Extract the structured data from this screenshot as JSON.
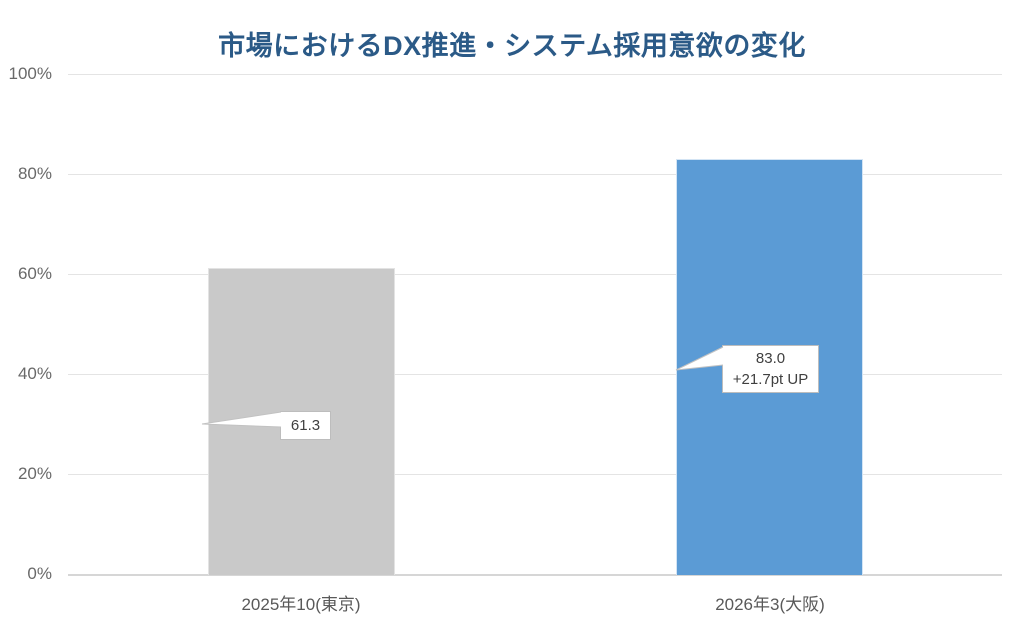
{
  "chart_data": {
    "type": "bar",
    "title": "市場におけるDX推進・システム採用意欲の変化",
    "categories": [
      "2025年10(東京)",
      "2026年3(大阪)"
    ],
    "values": [
      61.3,
      83.0
    ],
    "bar_colors": [
      "#C9C9C9",
      "#5B9BD5"
    ],
    "yticks": [
      "100%",
      "80%",
      "60%",
      "40%",
      "20%",
      "0%"
    ],
    "ylim": [
      0,
      100
    ],
    "xlabel": "",
    "ylabel": "",
    "grid": true,
    "legend": false,
    "callouts": [
      {
        "label": "61.3",
        "sub": ""
      },
      {
        "label": "83.0",
        "sub": "+21.7pt UP"
      }
    ]
  },
  "colors": {
    "title": "#2B5A87",
    "axis_text": "#696969",
    "gridline": "#E4E4E4",
    "axis_line": "#D6D6D6",
    "bar_gray": "#C9C9C9",
    "bar_blue": "#5B9BD5",
    "callout_border": "#BDBDBD",
    "callout_text": "#404040"
  }
}
